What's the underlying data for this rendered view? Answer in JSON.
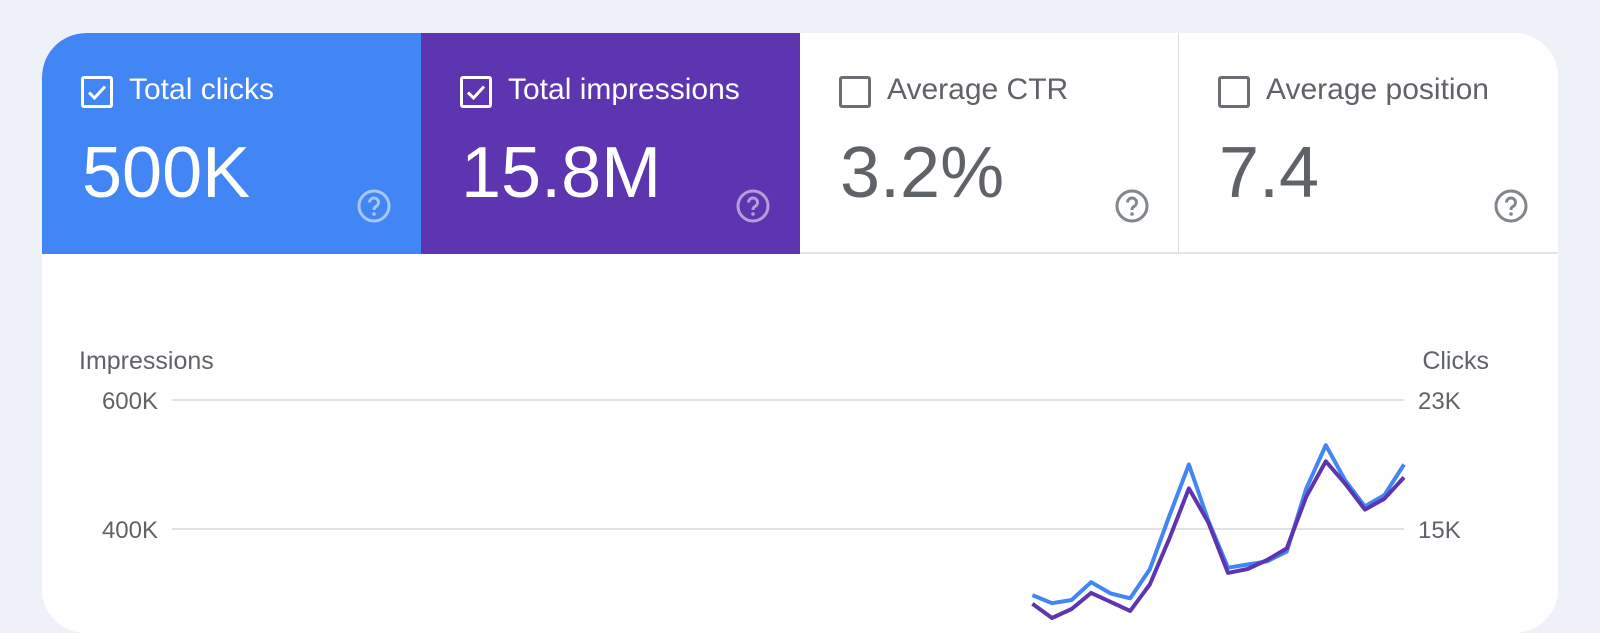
{
  "metrics": [
    {
      "label": "Total clicks",
      "value": "500K",
      "checked": true,
      "color": "#4285f4"
    },
    {
      "label": "Total impressions",
      "value": "15.8M",
      "checked": true,
      "color": "#5e35b1"
    },
    {
      "label": "Average CTR",
      "value": "3.2%",
      "checked": false
    },
    {
      "label": "Average position",
      "value": "7.4",
      "checked": false
    }
  ],
  "icons": {
    "checkbox_checked": "checkbox-checked-icon",
    "checkbox_unchecked": "checkbox-unchecked-icon",
    "help": "help-circle-icon"
  },
  "chart_data": {
    "type": "line",
    "left_axis": {
      "label": "Impressions",
      "ticks": [
        "600K",
        "400K"
      ]
    },
    "right_axis": {
      "label": "Clicks",
      "ticks": [
        "23K",
        "15K"
      ]
    },
    "grid": true,
    "x_visible_range_note": "",
    "series": [
      {
        "name": "Total clicks",
        "axis": "right",
        "color": "#4285f4",
        "values": [
          null,
          null,
          null,
          null,
          null,
          null,
          null,
          null,
          null,
          null,
          null,
          null,
          null,
          null,
          null,
          null,
          null,
          null,
          null,
          null,
          null,
          null,
          null,
          null,
          null,
          null,
          null,
          null,
          null,
          null,
          null,
          null,
          null,
          null,
          null,
          null,
          null,
          null,
          null,
          null,
          null,
          null,
          null,
          null,
          10900,
          10400,
          10600,
          11700,
          11000,
          10700,
          12500,
          15800,
          19000,
          15500,
          12600,
          12800,
          13000,
          13600,
          17500,
          20200,
          18000,
          16400,
          17100,
          19000
        ]
      },
      {
        "name": "Total impressions",
        "axis": "left",
        "color": "#5e35b1",
        "values": [
          null,
          null,
          null,
          null,
          null,
          null,
          null,
          null,
          null,
          null,
          null,
          null,
          null,
          null,
          null,
          null,
          null,
          null,
          null,
          null,
          null,
          null,
          null,
          null,
          null,
          null,
          null,
          null,
          null,
          null,
          null,
          null,
          null,
          null,
          null,
          null,
          null,
          null,
          null,
          null,
          null,
          null,
          null,
          null,
          284000,
          262000,
          276000,
          301000,
          287000,
          273000,
          314000,
          385000,
          463000,
          410000,
          332000,
          338000,
          352000,
          370000,
          450000,
          505000,
          470000,
          430000,
          447000,
          480000
        ]
      }
    ]
  }
}
